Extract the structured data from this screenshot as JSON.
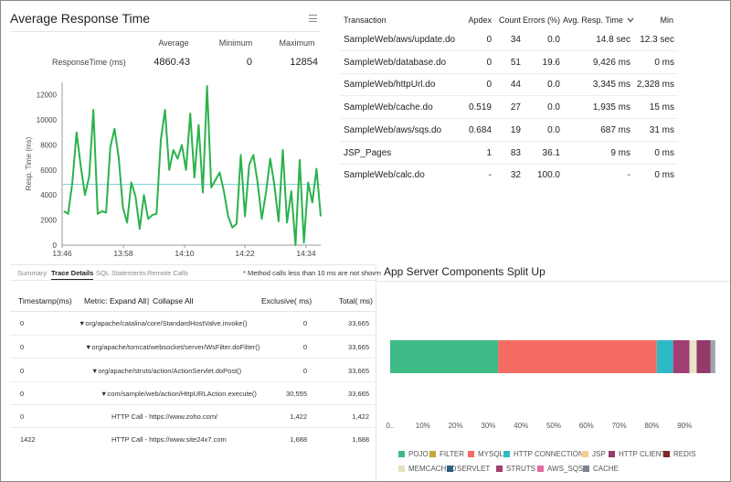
{
  "response_panel": {
    "title": "Average Response Time",
    "stats_headers": [
      "Average",
      "Minimum",
      "Maximum"
    ],
    "metric_label": "ResponseTime (ms)",
    "average": "4860.43",
    "minimum": "0",
    "maximum": "12854"
  },
  "chart_data": {
    "type": "line",
    "ylabel": "Resp. Time (ms)",
    "ylim": [
      0,
      13000
    ],
    "yticks": [
      0,
      2000,
      4000,
      6000,
      8000,
      10000,
      12000
    ],
    "xticks": [
      "13:46",
      "13:58",
      "14:10",
      "14:22",
      "14:34"
    ],
    "average_line": 4860,
    "series": [
      {
        "values": [
          2700,
          2500,
          5000,
          9000,
          6300,
          4000,
          5500,
          10800,
          2500,
          2700,
          2600,
          7800,
          9300,
          7000,
          3000,
          1800,
          5000,
          3900,
          1300,
          4000,
          2100,
          2400,
          2500,
          8400,
          10800,
          6000,
          7600,
          6900,
          8000,
          6000,
          10500,
          5400,
          9600,
          4200,
          12700,
          4600,
          5200,
          5800,
          4300,
          2300,
          1400,
          1700,
          7200,
          2300,
          6400,
          7200,
          5000,
          2100,
          4200,
          6900,
          4800,
          1900,
          7600,
          1800,
          4300,
          0,
          6800,
          200,
          5000,
          3400,
          6100,
          2300
        ]
      }
    ]
  },
  "trace_panel": {
    "tabs": [
      "Summary",
      "Trace Details",
      "SQL Statements",
      "Remote Calls"
    ],
    "note": "* Method calls less than 10 ms are not shown",
    "headers": {
      "timestamp": "Timestamp(ms)",
      "metric_prefix": "Metric:",
      "expand_all": "Expand All",
      "separator": "|",
      "collapse_all": "Collapse All",
      "exclusive": "Exclusive( ms)",
      "total": "Total( ms)"
    },
    "rows": [
      {
        "timestamp": "0",
        "metric": "▼org/apache/catalina/core/StandardHostValve.invoke()",
        "exclusive": "0",
        "total": "33,665"
      },
      {
        "timestamp": "0",
        "metric": "▼org/apache/tomcat/websocket/server/WsFilter.doFilter()",
        "exclusive": "0",
        "total": "33,665"
      },
      {
        "timestamp": "0",
        "metric": "▼org/apache/struts/action/ActionServlet.doPost()",
        "exclusive": "0",
        "total": "33,665"
      },
      {
        "timestamp": "0",
        "metric": "▼com/sample/web/action/HttpURLAction.execute()",
        "exclusive": "30,555",
        "total": "33,665"
      },
      {
        "timestamp": "0",
        "metric": "HTTP Call - https://www.zoho.com/",
        "exclusive": "1,422",
        "total": "1,422"
      },
      {
        "timestamp": "1422",
        "metric": "HTTP Call - https://www.site24x7.com",
        "exclusive": "1,688",
        "total": "1,688"
      }
    ]
  },
  "transactions": {
    "headers": [
      "Transaction",
      "Apdex",
      "Count",
      "Errors (%)",
      "Avg. Resp. Time",
      "Min"
    ],
    "sort_icon": "chevron-down-icon",
    "rows": [
      [
        "SampleWeb/aws/update.do",
        "0",
        "34",
        "0.0",
        "14.8 sec",
        "12.3 sec"
      ],
      [
        "SampleWeb/database.do",
        "0",
        "51",
        "19.6",
        "9,426 ms",
        "0 ms"
      ],
      [
        "SampleWeb/httpUrl.do",
        "0",
        "44",
        "0.0",
        "3,345 ms",
        "2,328 ms"
      ],
      [
        "SampleWeb/cache.do",
        "0.519",
        "27",
        "0.0",
        "1,935 ms",
        "15 ms"
      ],
      [
        "SampleWeb/aws/sqs.do",
        "0.684",
        "19",
        "0.0",
        "687 ms",
        "31 ms"
      ],
      [
        "JSP_Pages",
        "1",
        "83",
        "36.1",
        "9 ms",
        "0 ms"
      ],
      [
        "SampleWeb/calc.do",
        "-",
        "32",
        "100.0",
        "-",
        "0 ms"
      ]
    ]
  },
  "components_panel": {
    "title": "App Server Components Split Up",
    "axis_ticks": [
      "0..",
      "10%",
      "20%",
      "30%",
      "40%",
      "50%",
      "60%",
      "70%",
      "80%",
      "90%"
    ],
    "segments": [
      {
        "name": "POJO",
        "value": 33.0,
        "color": "#3dba85"
      },
      {
        "name": "MYSQL",
        "value": 48.5,
        "color": "#f46c62"
      },
      {
        "name": "HTTP CONNECTION",
        "value": 5.0,
        "color": "#2fb8c6"
      },
      {
        "name": "STRUTS",
        "value": 5.0,
        "color": "#a13e72"
      },
      {
        "name": "MEMCACHED",
        "value": 2.2,
        "color": "#e9e4c5"
      },
      {
        "name": "HTTP CLIENT",
        "value": 4.2,
        "color": "#943a6a"
      },
      {
        "name": "CACHE",
        "value": 1.5,
        "color": "#a0a4ad"
      }
    ],
    "legend": [
      {
        "name": "POJO",
        "color": "#3dba85"
      },
      {
        "name": "FILTER",
        "color": "#c7a63a"
      },
      {
        "name": "MYSQL",
        "color": "#f46c62"
      },
      {
        "name": "HTTP CONNECTION",
        "color": "#2fb8c6"
      },
      {
        "name": "JSP",
        "color": "#f2cf8c"
      },
      {
        "name": "HTTP CLIENT",
        "color": "#943a6a"
      },
      {
        "name": "REDIS",
        "color": "#7a2a2a"
      },
      {
        "name": "MEMCACHED",
        "color": "#e4e0c2"
      },
      {
        "name": "SERVLET",
        "color": "#2c5f7a"
      },
      {
        "name": "STRUTS",
        "color": "#a13e72"
      },
      {
        "name": "AWS_SQS",
        "color": "#e06c9c"
      },
      {
        "name": "CACHE",
        "color": "#7d8593"
      }
    ]
  }
}
